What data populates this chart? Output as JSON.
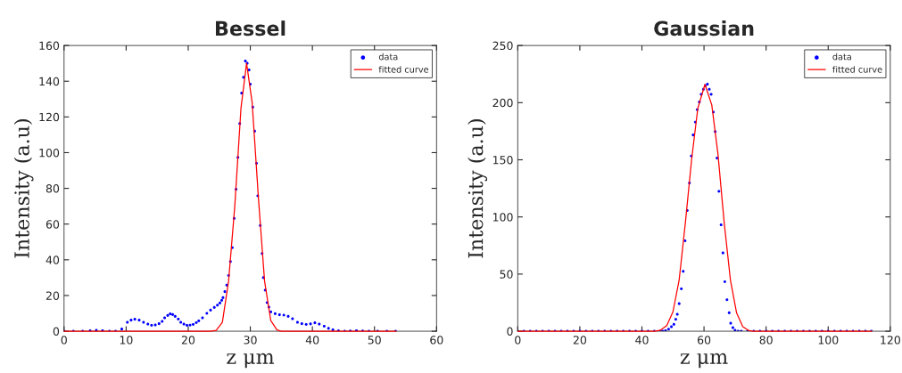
{
  "chart_data": [
    {
      "type": "scatter",
      "title": "Bessel",
      "xlabel": "z μm",
      "ylabel": "Intensity (a.u)",
      "xlim": [
        0,
        60
      ],
      "xticks": [
        0,
        10,
        20,
        30,
        40,
        50,
        60
      ],
      "ylim": [
        0,
        160
      ],
      "yticks": [
        0,
        20,
        40,
        60,
        80,
        100,
        120,
        140,
        160
      ],
      "legend": "top right",
      "grid": false,
      "series": [
        {
          "name": "data",
          "type": "scatter",
          "marker": "circle",
          "color": "#0000ff",
          "x": [
            0,
            1.5,
            3.0,
            4.2,
            5.2,
            6.2,
            7.3,
            8.3,
            9.3,
            10.2,
            10.8,
            11.4,
            12.1,
            12.8,
            13.5,
            14.1,
            14.7,
            15.3,
            15.8,
            16.2,
            16.7,
            17.1,
            17.5,
            17.9,
            18.4,
            18.8,
            19.3,
            19.8,
            20.3,
            20.8,
            21.3,
            21.7,
            22.3,
            23.0,
            23.6,
            24.2,
            24.7,
            25.1,
            25.4,
            25.6,
            25.9,
            26.2,
            26.5,
            26.8,
            27.1,
            27.4,
            27.7,
            28.0,
            28.3,
            28.6,
            28.9,
            29.2,
            29.5,
            29.8,
            30.0,
            30.4,
            30.7,
            31.0,
            31.2,
            31.6,
            31.9,
            32.1,
            32.4,
            32.7,
            33.0,
            33.3,
            34.0,
            34.7,
            35.4,
            36.1,
            36.8,
            37.6,
            38.3,
            39.0,
            39.7,
            40.4,
            41.1,
            41.9,
            42.6,
            43.3,
            44.2,
            45.2,
            46.1,
            47.1,
            48.1,
            49.1,
            50.5,
            52.0,
            53.4
          ],
          "values": [
            0,
            0,
            0,
            0.2,
            0.5,
            0.3,
            0,
            0,
            1.2,
            5,
            6.2,
            6.7,
            6.2,
            5,
            4,
            3.3,
            3.5,
            4.2,
            5.5,
            7.5,
            8.8,
            9.7,
            9.3,
            8.3,
            6.8,
            5,
            4,
            3.3,
            3.4,
            3.8,
            4.8,
            5.8,
            7.5,
            10,
            11.8,
            13.3,
            14.6,
            15.8,
            17.3,
            18.8,
            22.2,
            25.8,
            31.2,
            39,
            46.8,
            63.2,
            79.5,
            97.3,
            116.3,
            133.3,
            142.2,
            151.3,
            150,
            146.3,
            138.3,
            125.5,
            112,
            94,
            75.8,
            59.2,
            43.5,
            30,
            23,
            16,
            13.5,
            10.8,
            9.8,
            9.2,
            9,
            8.3,
            7,
            5,
            4.2,
            3.8,
            4.1,
            4.7,
            4,
            2.8,
            1.6,
            0.8,
            0.2,
            0,
            0.1,
            0.3,
            0.1,
            0,
            0,
            0,
            0
          ]
        },
        {
          "name": "fitted curve",
          "type": "line",
          "marker": "none",
          "line_style": "solid",
          "color": "#ff0000",
          "x": [
            0,
            23.5,
            24.5,
            25.5,
            26.5,
            27.5,
            28.5,
            29.4,
            30.3,
            31.3,
            32.3,
            33.3,
            34.3,
            35,
            53.5
          ],
          "values": [
            0,
            0,
            0.5,
            5,
            28,
            70,
            125,
            150,
            128,
            75,
            28,
            6,
            0.7,
            0,
            0
          ]
        }
      ]
    },
    {
      "type": "scatter",
      "title": "Gaussian",
      "xlabel": "z μm",
      "ylabel": "Intensity (a.u)",
      "xlim": [
        0,
        120
      ],
      "xticks": [
        0,
        20,
        40,
        60,
        80,
        100,
        120
      ],
      "ylim": [
        0,
        250
      ],
      "yticks": [
        0,
        50,
        100,
        150,
        200,
        250
      ],
      "legend": "top right",
      "grid": false,
      "series": [
        {
          "name": "data",
          "type": "scatter",
          "marker": "circle",
          "color": "#0000ff",
          "x": [
            0,
            2,
            4,
            6,
            8,
            10,
            12,
            14,
            16,
            18,
            20,
            22,
            24,
            26,
            28,
            30,
            32,
            34,
            36,
            38,
            40,
            42,
            44,
            46,
            46.7,
            47.6,
            48.6,
            49.5,
            50.3,
            50.9,
            51.4,
            52.0,
            52.7,
            53.3,
            53.9,
            54.6,
            55.3,
            55.9,
            56.5,
            57.2,
            57.8,
            58.5,
            59.1,
            59.8,
            60.4,
            61.1,
            61.7,
            62.3,
            63.0,
            63.6,
            64.2,
            64.8,
            65.5,
            66.1,
            66.7,
            67.4,
            68.1,
            68.6,
            69.3,
            70.0,
            71.0,
            72,
            74,
            76,
            78,
            80,
            82,
            84,
            86,
            88,
            90,
            92,
            94,
            96,
            98,
            100,
            102,
            104,
            106,
            108,
            110,
            112,
            113.9
          ],
          "values": [
            0,
            0,
            0,
            0,
            0,
            0,
            0,
            0,
            0,
            0,
            0,
            0,
            0,
            0,
            0,
            0,
            0,
            0,
            0,
            0,
            0,
            0,
            0,
            0,
            0,
            0.5,
            1.8,
            3.9,
            6,
            10.4,
            14.8,
            24.1,
            37.1,
            52.4,
            79.1,
            105.6,
            129.7,
            153.3,
            171.7,
            182.9,
            193.8,
            200.5,
            207.3,
            211.7,
            214.8,
            216.1,
            211.7,
            207.3,
            191.7,
            174.6,
            151.5,
            122.4,
            93.1,
            68.5,
            43.3,
            27.5,
            16.1,
            7,
            3.1,
            0.8,
            0,
            0,
            0,
            0,
            0,
            0,
            0,
            0,
            0,
            0,
            0,
            0,
            0,
            0,
            0,
            0,
            0,
            0,
            0,
            0,
            0,
            0,
            0
          ]
        },
        {
          "name": "fitted curve",
          "type": "line",
          "marker": "none",
          "line_style": "solid",
          "color": "#ff0000",
          "x": [
            0,
            44,
            46,
            48,
            50,
            52,
            54,
            56,
            58,
            60.3,
            62.5,
            64.5,
            66.5,
            68.5,
            70.5,
            72.5,
            74.5,
            76,
            114
          ],
          "values": [
            0,
            0,
            1,
            5,
            17,
            45,
            95,
            150,
            195,
            216,
            198,
            155,
            95,
            45,
            16,
            4,
            0.5,
            0,
            0
          ]
        }
      ]
    }
  ]
}
